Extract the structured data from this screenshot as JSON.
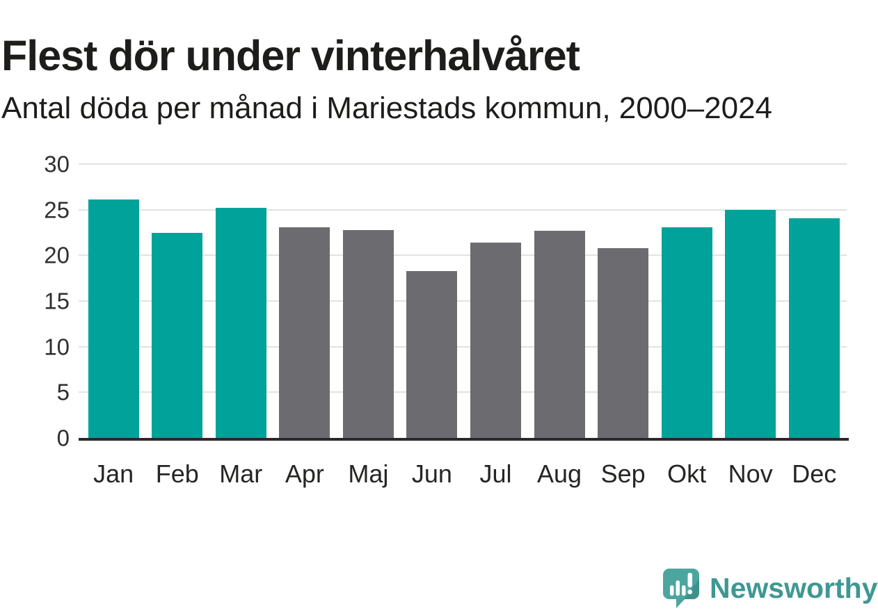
{
  "header": {
    "title": "Flest dör under vinterhalvåret",
    "subtitle": "Antal döda per månad i Mariestads kommun, 2000–2024"
  },
  "chart_data": {
    "type": "bar",
    "title": "Flest dör under vinterhalvåret",
    "subtitle": "Antal döda per månad i Mariestads kommun, 2000–2024",
    "categories": [
      "Jan",
      "Feb",
      "Mar",
      "Apr",
      "Maj",
      "Jun",
      "Jul",
      "Aug",
      "Sep",
      "Okt",
      "Nov",
      "Dec"
    ],
    "values": [
      26.1,
      22.5,
      25.2,
      23.1,
      22.8,
      18.3,
      21.4,
      22.7,
      20.8,
      23.1,
      25.0,
      24.1
    ],
    "highlighted_categories": [
      "Jan",
      "Feb",
      "Mar",
      "Okt",
      "Nov",
      "Dec"
    ],
    "highlight_color": "#00a29a",
    "default_color": "#6c6b70",
    "xlabel": "",
    "ylabel": "",
    "ylim": [
      0,
      30
    ],
    "yticks": [
      0,
      5,
      10,
      15,
      20,
      25,
      30
    ],
    "grid": "horizontal",
    "gridline_color": "#e2e2e2",
    "axis_line_color": "#2a2a2a",
    "legend": "none"
  },
  "branding": {
    "logo_text": "Newsworthy",
    "logo_icon": "newsworthy-speech-bubble-bar-chart-icon",
    "logo_text_color": "#3f9793",
    "logo_bubble_color": "#4da5a0",
    "logo_bubble_shadow_color": "#3e8e8a"
  }
}
